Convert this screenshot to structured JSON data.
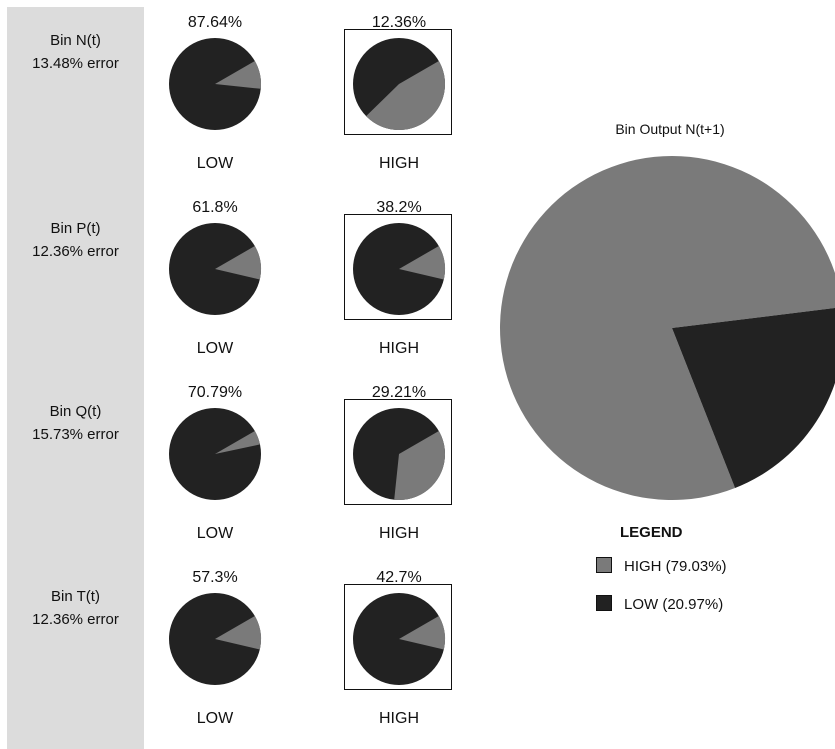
{
  "chart_data": {
    "type": "pie",
    "colors": {
      "HIGH": "#7a7a7a",
      "LOW": "#222222"
    },
    "inputs": [
      {
        "name": "Bin N(t)",
        "error": "13.48% error",
        "low_pct": "87.64%",
        "high_pct": "12.36%",
        "low_label": "LOW",
        "high_label": "HIGH",
        "selected": "HIGH",
        "low_pie_high_share": 0.1,
        "high_pie_high_share": 0.46
      },
      {
        "name": "Bin P(t)",
        "error": "12.36% error",
        "low_pct": "61.8%",
        "high_pct": "38.2%",
        "low_label": "LOW",
        "high_label": "HIGH",
        "selected": "HIGH",
        "low_pie_high_share": 0.12,
        "high_pie_high_share": 0.12
      },
      {
        "name": "Bin Q(t)",
        "error": "15.73% error",
        "low_pct": "70.79%",
        "high_pct": "29.21%",
        "low_label": "LOW",
        "high_label": "HIGH",
        "selected": "HIGH",
        "low_pie_high_share": 0.05,
        "high_pie_high_share": 0.35
      },
      {
        "name": "Bin T(t)",
        "error": "12.36% error",
        "low_pct": "57.3%",
        "high_pct": "42.7%",
        "low_label": "LOW",
        "high_label": "HIGH",
        "selected": "HIGH",
        "low_pie_high_share": 0.12,
        "high_pie_high_share": 0.12
      }
    ],
    "output": {
      "title": "Bin Output N(t+1)",
      "slices": [
        {
          "label": "HIGH",
          "value": 79.03
        },
        {
          "label": "LOW",
          "value": 20.97
        }
      ]
    },
    "legend": {
      "title": "LEGEND",
      "items": [
        {
          "label": "HIGH (79.03%)",
          "key": "HIGH"
        },
        {
          "label": "LOW (20.97%)",
          "key": "LOW"
        }
      ]
    }
  }
}
